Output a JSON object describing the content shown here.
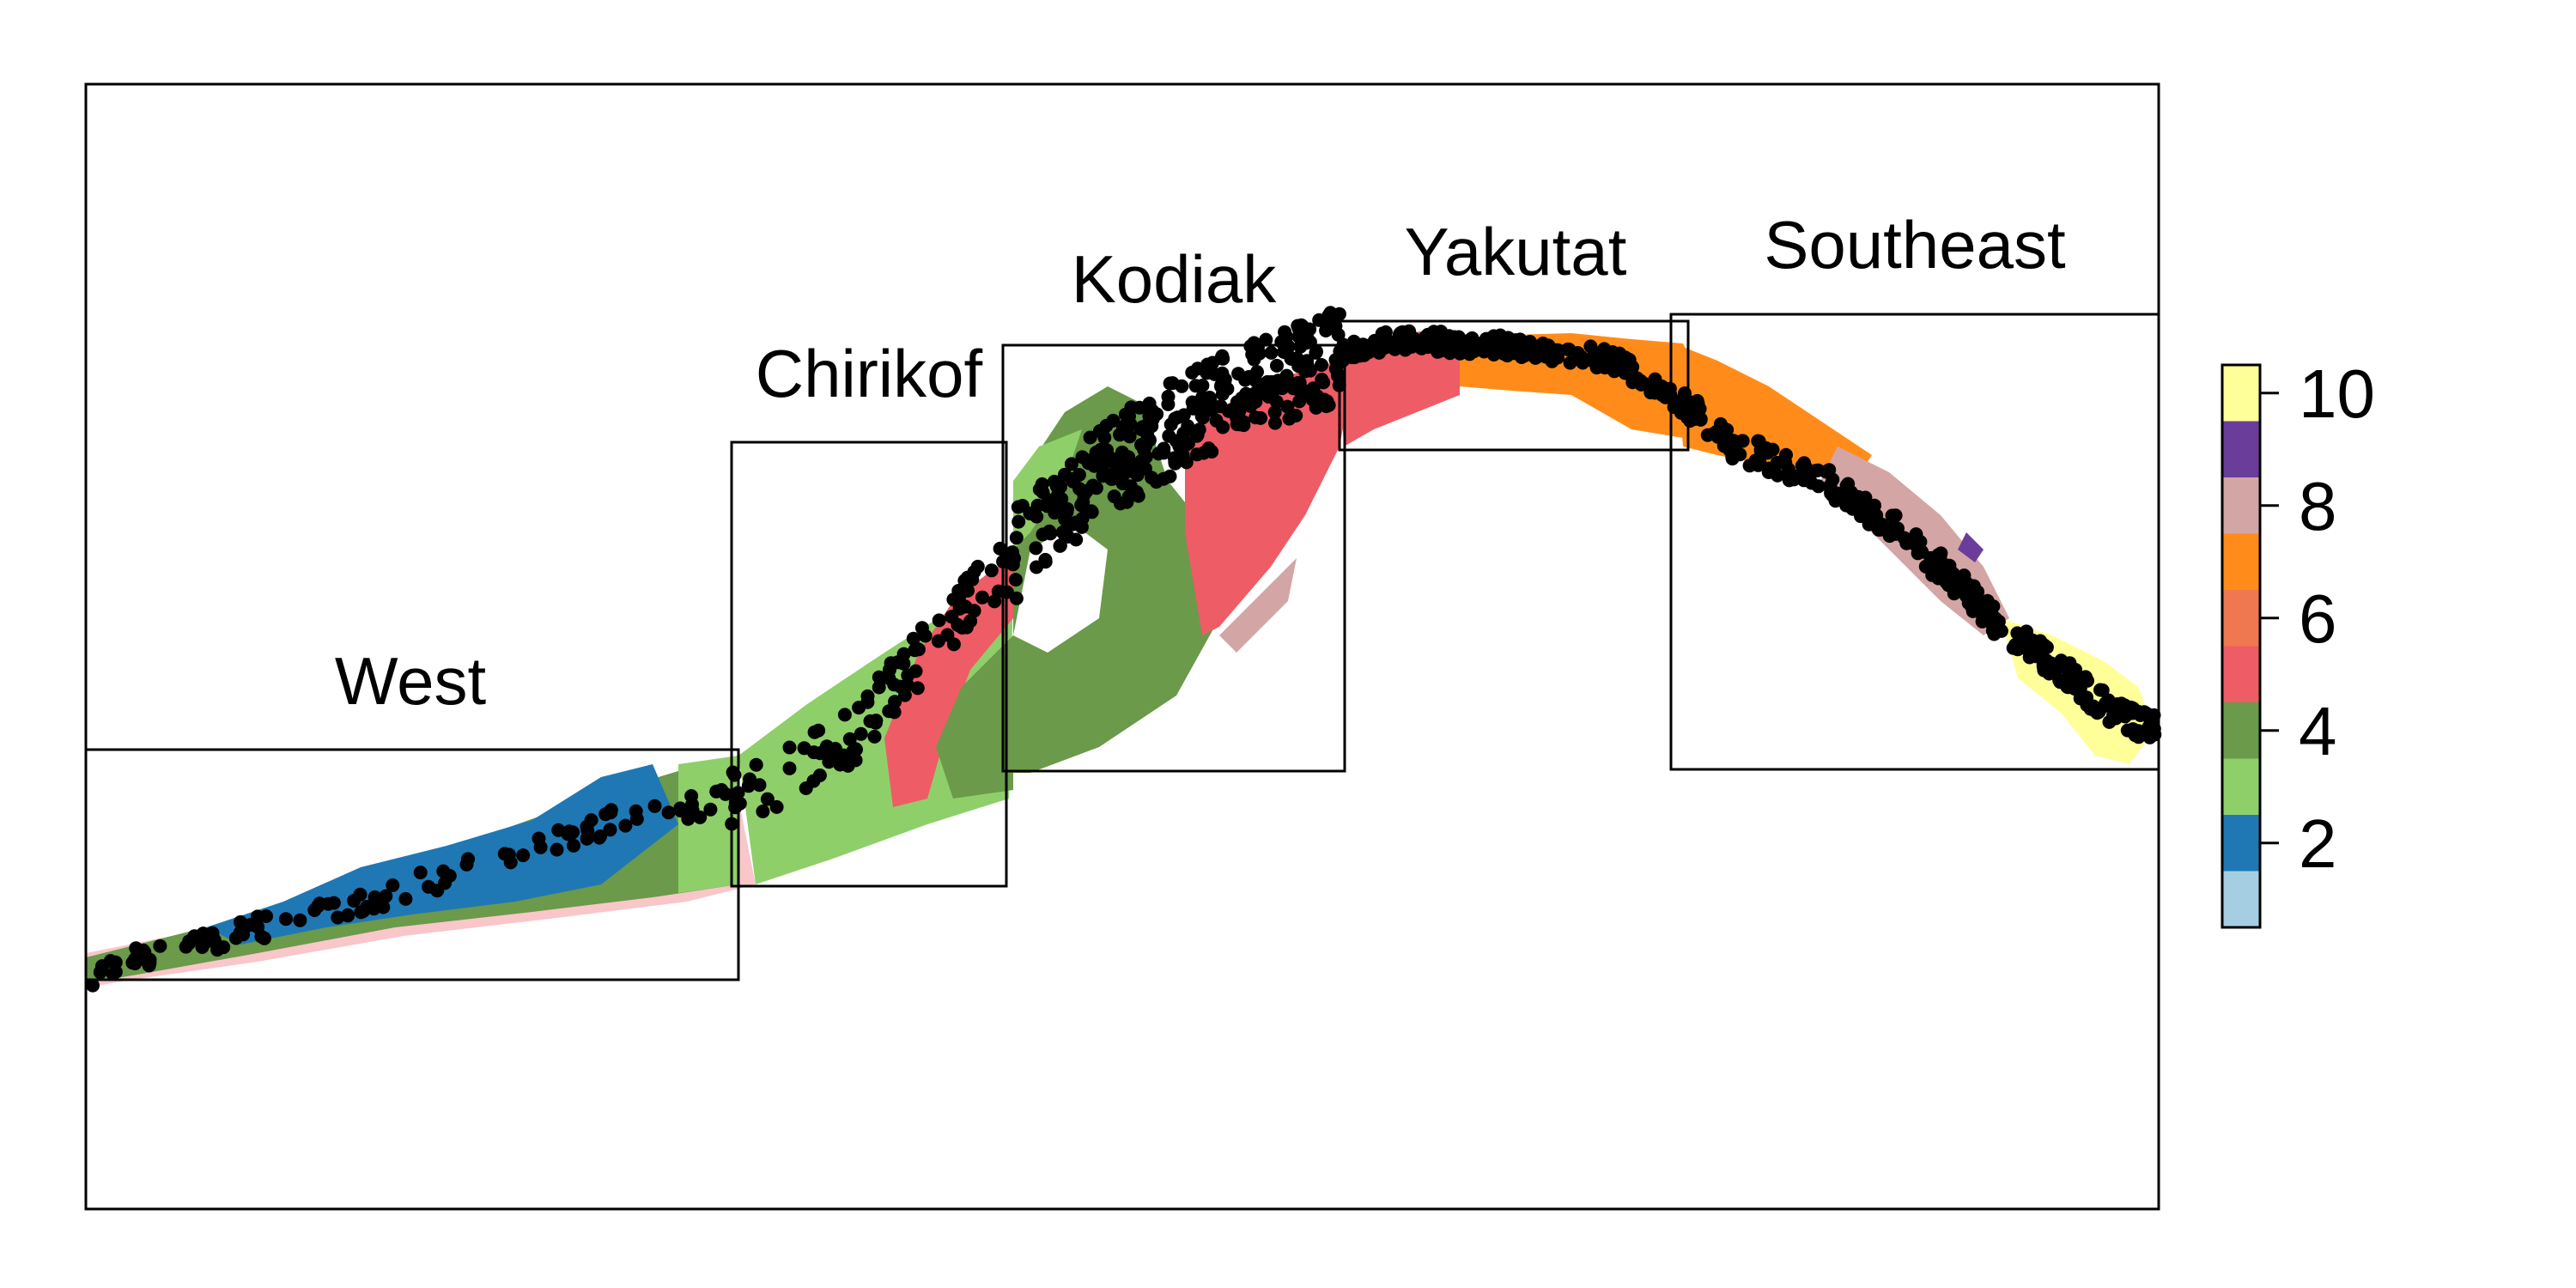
{
  "chart_data": {
    "type": "heatmap",
    "title": "",
    "xlabel": "",
    "ylabel": "",
    "description_kind": "spatial map of ranked categories with survey points and region boxes",
    "regions": [
      {
        "name": "West"
      },
      {
        "name": "Chirikof"
      },
      {
        "name": "Kodiak"
      },
      {
        "name": "Yakutat"
      },
      {
        "name": "Southeast"
      }
    ],
    "legend": {
      "range": [
        1,
        10
      ],
      "ticks": [
        2,
        4,
        6,
        8,
        10
      ],
      "tick_labels": [
        "2",
        "4",
        "6",
        "8",
        "10"
      ],
      "colors": [
        "#a6cee3",
        "#1f78b4",
        "#8fcf6a",
        "#6a9a4a",
        "#ee5c66",
        "#f07850",
        "#ff8c1a",
        "#d4a5a5",
        "#6a3d9a",
        "#ffff99"
      ]
    },
    "dominant_category_by_region": [
      {
        "region": "West",
        "categories": [
          2,
          3
        ]
      },
      {
        "region": "Chirikof",
        "categories": [
          3,
          5
        ]
      },
      {
        "region": "Kodiak",
        "categories": [
          4,
          5
        ]
      },
      {
        "region": "Yakutat",
        "categories": [
          5,
          7
        ]
      },
      {
        "region": "Southeast",
        "categories": [
          7,
          8,
          10
        ]
      }
    ],
    "points_shown": true,
    "axes_shown": false,
    "grid": false,
    "legend_position": "right"
  }
}
